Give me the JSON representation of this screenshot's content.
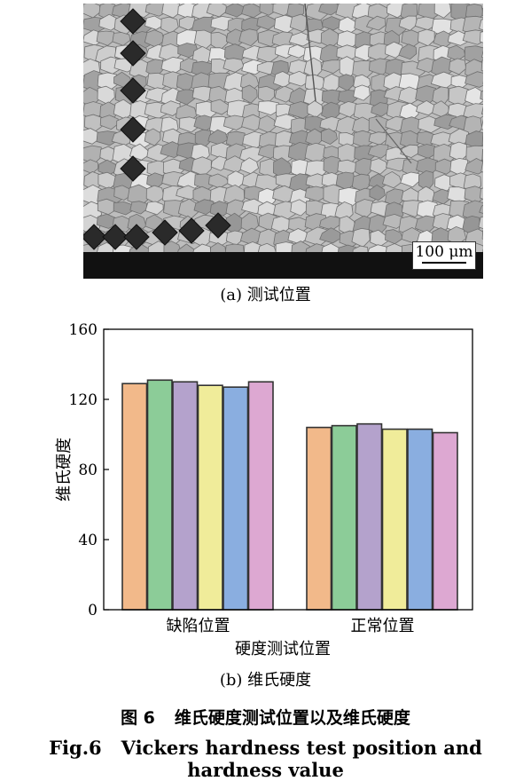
{
  "micrograph": {
    "scale_bar_label": "100 μm"
  },
  "captions": {
    "panel_a": "(a) 测试位置",
    "panel_b": "(b) 维氏硬度",
    "figure_label_cn": "图 6",
    "figure_title_cn": "维氏硬度测试位置以及维氏硬度",
    "figure_label_en": "Fig.6",
    "figure_title_en": "Vickers hardness test position and hardness value"
  },
  "chart_data": {
    "type": "bar",
    "categories": [
      "缺陷位置",
      "正常位置"
    ],
    "series": [
      {
        "values": [
          129,
          104
        ],
        "color": "#f2b98a"
      },
      {
        "values": [
          131,
          105
        ],
        "color": "#8ccc98"
      },
      {
        "values": [
          130,
          106
        ],
        "color": "#b4a2cc"
      },
      {
        "values": [
          128,
          103
        ],
        "color": "#f0ec9a"
      },
      {
        "values": [
          127,
          103
        ],
        "color": "#8aaee0"
      },
      {
        "values": [
          130,
          101
        ],
        "color": "#dda8d2"
      }
    ],
    "xlabel": "硬度测试位置",
    "ylabel": "维氏硬度",
    "ylim": [
      0,
      160
    ],
    "yticks": [
      0,
      40,
      80,
      120,
      160
    ],
    "grid": false,
    "legend": "none"
  }
}
